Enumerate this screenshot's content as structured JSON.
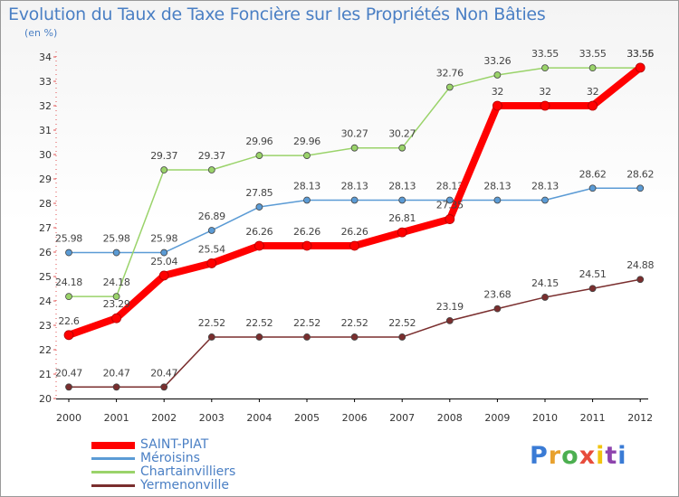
{
  "chart_data": {
    "type": "line",
    "title": "Evolution du Taux de Taxe Foncière sur les Propriétés Non Bâties",
    "ylabel": "(en %)",
    "xlabel": "",
    "ylim": [
      20,
      34
    ],
    "yticks": [
      "20",
      "21",
      "22",
      "23",
      "24",
      "25",
      "26",
      "27",
      "28",
      "29",
      "30",
      "31",
      "32",
      "33",
      "34"
    ],
    "categories": [
      "2000",
      "2001",
      "2002",
      "2003",
      "2004",
      "2005",
      "2006",
      "2007",
      "2008",
      "2009",
      "2010",
      "2011",
      "2012"
    ],
    "grid": false,
    "series": [
      {
        "name": "Yermenonville",
        "color": "#7a2e2e",
        "values": [
          20.47,
          20.47,
          20.47,
          22.52,
          22.52,
          22.52,
          22.52,
          22.52,
          23.19,
          23.68,
          24.15,
          24.51,
          24.88
        ],
        "labels": [
          "20.47",
          "20.47",
          "20.47",
          "22.52",
          "22.52",
          "22.52",
          "22.52",
          "22.52",
          "23.19",
          "23.68",
          "24.15",
          "24.51",
          "24.88"
        ]
      },
      {
        "name": "Méroisins",
        "color": "#5b9bd5",
        "values": [
          25.98,
          25.98,
          25.98,
          26.89,
          27.85,
          28.13,
          28.13,
          28.13,
          28.13,
          28.13,
          28.13,
          28.62,
          28.62
        ],
        "labels": [
          "25.98",
          "25.98",
          "25.98",
          "26.89",
          "27.85",
          "28.13",
          "28.13",
          "28.13",
          "28.13",
          "28.13",
          "28.13",
          "28.62",
          "28.62"
        ]
      },
      {
        "name": "Chartainvilliers",
        "color": "#9ad36a",
        "values": [
          24.18,
          24.18,
          29.37,
          29.37,
          29.96,
          29.96,
          30.27,
          30.27,
          32.76,
          33.26,
          33.55,
          33.55,
          33.55
        ],
        "labels": [
          "24.18",
          "24.18",
          "29.37",
          "29.37",
          "29.96",
          "29.96",
          "30.27",
          "30.27",
          "32.76",
          "33.26",
          "33.55",
          "33.55",
          "33.55"
        ]
      },
      {
        "name": "SAINT-PIAT",
        "color": "#ff0000",
        "values": [
          22.6,
          23.29,
          25.04,
          25.54,
          26.26,
          26.26,
          26.26,
          26.81,
          27.35,
          32,
          32,
          32,
          33.56
        ],
        "labels": [
          "22.6",
          "23.29",
          "25.04",
          "25.54",
          "26.26",
          "26.26",
          "26.26",
          "26.81",
          "27.35",
          "32",
          "32",
          "32",
          "33.56"
        ]
      }
    ],
    "legend": {
      "placement": "bottom-left",
      "items": [
        {
          "name": "SAINT-PIAT",
          "color": "#ff0000"
        },
        {
          "name": "Méroisins",
          "color": "#5b9bd5"
        },
        {
          "name": "Chartainvilliers",
          "color": "#9ad36a"
        },
        {
          "name": "Yermenonville",
          "color": "#7a2e2e"
        }
      ]
    }
  },
  "brand": {
    "letters": [
      "P",
      "r",
      "o",
      "x",
      "i",
      "t",
      "i"
    ],
    "colors": [
      "#3a7bd5",
      "#e8a12e",
      "#4caf50",
      "#e74c3c",
      "#f1c40f",
      "#8e44ad",
      "#3a7bd5"
    ]
  }
}
